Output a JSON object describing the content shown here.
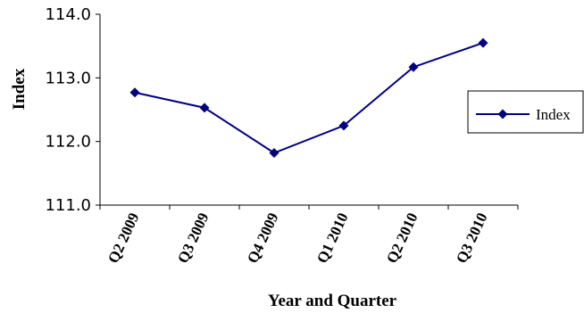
{
  "chart_data": {
    "type": "line",
    "categories": [
      "Q2 2009",
      "Q3 2009",
      "Q4 2009",
      "Q1 2010",
      "Q2 2010",
      "Q3 2010"
    ],
    "series": [
      {
        "name": "Index",
        "values": [
          112.77,
          112.53,
          111.82,
          112.25,
          113.17,
          113.55
        ],
        "color": "#000080",
        "marker": "diamond"
      }
    ],
    "xlabel": "Year and Quarter",
    "ylabel": "Index",
    "ylim": [
      111.0,
      114.0
    ],
    "yticks": [
      "111.0",
      "112.0",
      "113.0",
      "114.0"
    ],
    "grid": false,
    "legend_position": "right"
  }
}
